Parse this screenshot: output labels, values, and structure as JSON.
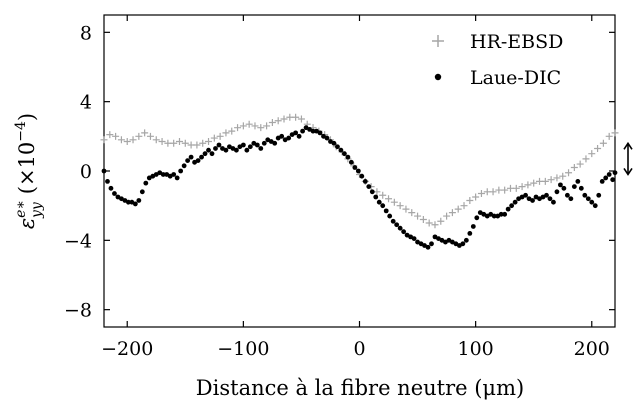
{
  "chart_data": {
    "type": "scatter",
    "xlabel": "Distance à la fibre neutre (μm)",
    "ylabel": {
      "symbol": "ε",
      "superscript": "e∗",
      "subscript": "yy",
      "unit": "(×10",
      "unit_exponent": "−4",
      "unit_close": ")"
    },
    "xlim": [
      -220,
      220
    ],
    "ylim": [
      -9,
      9
    ],
    "xticks": [
      {
        "value": -200,
        "label": "−200"
      },
      {
        "value": -100,
        "label": "−100"
      },
      {
        "value": 0,
        "label": "0"
      },
      {
        "value": 100,
        "label": "100"
      },
      {
        "value": 200,
        "label": "200"
      }
    ],
    "yticks": [
      {
        "value": 8,
        "label": "8"
      },
      {
        "value": 4,
        "label": "4"
      },
      {
        "value": 0,
        "label": "0"
      },
      {
        "value": -4,
        "label": "−4"
      },
      {
        "value": -8,
        "label": "−8"
      }
    ],
    "grid": false,
    "legend_position": "top-right",
    "annotation": {
      "type": "double-arrow",
      "y_from": -0.2,
      "y_to": 1.6
    },
    "series": [
      {
        "name": "HR-EBSD",
        "marker": "plus",
        "color": "#a6a6a6",
        "points": [
          [
            -220,
            1.8
          ],
          [
            -215,
            2.1
          ],
          [
            -210,
            2.0
          ],
          [
            -205,
            1.8
          ],
          [
            -200,
            1.7
          ],
          [
            -195,
            1.8
          ],
          [
            -190,
            2.0
          ],
          [
            -185,
            2.2
          ],
          [
            -180,
            2.0
          ],
          [
            -175,
            1.8
          ],
          [
            -170,
            1.7
          ],
          [
            -165,
            1.6
          ],
          [
            -160,
            1.6
          ],
          [
            -155,
            1.7
          ],
          [
            -150,
            1.6
          ],
          [
            -145,
            1.5
          ],
          [
            -140,
            1.5
          ],
          [
            -135,
            1.6
          ],
          [
            -130,
            1.7
          ],
          [
            -125,
            1.9
          ],
          [
            -120,
            2.0
          ],
          [
            -115,
            2.2
          ],
          [
            -110,
            2.3
          ],
          [
            -105,
            2.5
          ],
          [
            -100,
            2.6
          ],
          [
            -95,
            2.7
          ],
          [
            -90,
            2.6
          ],
          [
            -85,
            2.5
          ],
          [
            -80,
            2.6
          ],
          [
            -75,
            2.8
          ],
          [
            -70,
            2.9
          ],
          [
            -65,
            3.0
          ],
          [
            -60,
            3.1
          ],
          [
            -55,
            3.1
          ],
          [
            -50,
            3.0
          ],
          [
            -45,
            2.7
          ],
          [
            -40,
            2.5
          ],
          [
            -35,
            2.3
          ],
          [
            -30,
            2.1
          ],
          [
            -25,
            1.8
          ],
          [
            -20,
            1.4
          ],
          [
            -15,
            1.1
          ],
          [
            -10,
            0.7
          ],
          [
            -5,
            0.3
          ],
          [
            0,
            -0.2
          ],
          [
            5,
            -0.6
          ],
          [
            10,
            -0.9
          ],
          [
            15,
            -1.2
          ],
          [
            20,
            -1.4
          ],
          [
            25,
            -1.6
          ],
          [
            30,
            -1.8
          ],
          [
            35,
            -2.0
          ],
          [
            40,
            -2.2
          ],
          [
            45,
            -2.4
          ],
          [
            50,
            -2.6
          ],
          [
            55,
            -2.8
          ],
          [
            60,
            -3.0
          ],
          [
            65,
            -3.1
          ],
          [
            70,
            -2.9
          ],
          [
            75,
            -2.6
          ],
          [
            80,
            -2.4
          ],
          [
            85,
            -2.2
          ],
          [
            90,
            -2.0
          ],
          [
            95,
            -1.7
          ],
          [
            100,
            -1.5
          ],
          [
            105,
            -1.3
          ],
          [
            110,
            -1.2
          ],
          [
            115,
            -1.2
          ],
          [
            120,
            -1.1
          ],
          [
            125,
            -1.1
          ],
          [
            130,
            -1.0
          ],
          [
            135,
            -1.0
          ],
          [
            140,
            -0.9
          ],
          [
            145,
            -0.8
          ],
          [
            150,
            -0.7
          ],
          [
            155,
            -0.6
          ],
          [
            160,
            -0.6
          ],
          [
            165,
            -0.5
          ],
          [
            170,
            -0.4
          ],
          [
            175,
            -0.3
          ],
          [
            180,
            -0.1
          ],
          [
            185,
            0.2
          ],
          [
            190,
            0.4
          ],
          [
            195,
            0.7
          ],
          [
            200,
            1.0
          ],
          [
            205,
            1.3
          ],
          [
            210,
            1.6
          ],
          [
            215,
            2.0
          ],
          [
            220,
            2.2
          ]
        ]
      },
      {
        "name": "Laue-DIC",
        "marker": "dot",
        "color": "#000000",
        "points": [
          [
            -220,
            0.0
          ],
          [
            -217,
            -0.6
          ],
          [
            -214,
            -1.0
          ],
          [
            -211,
            -1.3
          ],
          [
            -208,
            -1.5
          ],
          [
            -205,
            -1.6
          ],
          [
            -202,
            -1.7
          ],
          [
            -199,
            -1.8
          ],
          [
            -196,
            -1.8
          ],
          [
            -193,
            -1.9
          ],
          [
            -190,
            -1.7
          ],
          [
            -187,
            -1.2
          ],
          [
            -184,
            -0.7
          ],
          [
            -181,
            -0.4
          ],
          [
            -178,
            -0.3
          ],
          [
            -175,
            -0.2
          ],
          [
            -172,
            -0.1
          ],
          [
            -169,
            -0.2
          ],
          [
            -166,
            -0.2
          ],
          [
            -163,
            -0.3
          ],
          [
            -160,
            -0.2
          ],
          [
            -157,
            -0.4
          ],
          [
            -154,
            0.0
          ],
          [
            -151,
            0.3
          ],
          [
            -148,
            0.6
          ],
          [
            -145,
            0.8
          ],
          [
            -142,
            0.5
          ],
          [
            -139,
            0.6
          ],
          [
            -136,
            0.8
          ],
          [
            -133,
            1.0
          ],
          [
            -130,
            1.2
          ],
          [
            -127,
            1.0
          ],
          [
            -124,
            1.3
          ],
          [
            -121,
            1.5
          ],
          [
            -118,
            1.3
          ],
          [
            -115,
            1.2
          ],
          [
            -112,
            1.4
          ],
          [
            -109,
            1.3
          ],
          [
            -106,
            1.2
          ],
          [
            -103,
            1.4
          ],
          [
            -100,
            1.5
          ],
          [
            -97,
            1.2
          ],
          [
            -94,
            1.4
          ],
          [
            -91,
            1.6
          ],
          [
            -88,
            1.5
          ],
          [
            -85,
            1.3
          ],
          [
            -82,
            1.6
          ],
          [
            -79,
            1.8
          ],
          [
            -76,
            1.7
          ],
          [
            -73,
            1.6
          ],
          [
            -70,
            1.9
          ],
          [
            -67,
            2.0
          ],
          [
            -64,
            1.8
          ],
          [
            -61,
            1.9
          ],
          [
            -58,
            2.1
          ],
          [
            -55,
            2.2
          ],
          [
            -52,
            2.0
          ],
          [
            -49,
            2.3
          ],
          [
            -46,
            2.5
          ],
          [
            -43,
            2.4
          ],
          [
            -40,
            2.3
          ],
          [
            -37,
            2.3
          ],
          [
            -34,
            2.2
          ],
          [
            -31,
            2.0
          ],
          [
            -28,
            1.9
          ],
          [
            -25,
            1.7
          ],
          [
            -22,
            1.6
          ],
          [
            -19,
            1.4
          ],
          [
            -16,
            1.2
          ],
          [
            -13,
            1.0
          ],
          [
            -10,
            0.8
          ],
          [
            -7,
            0.5
          ],
          [
            -4,
            0.2
          ],
          [
            -1,
            0.0
          ],
          [
            2,
            -0.3
          ],
          [
            5,
            -0.6
          ],
          [
            8,
            -0.9
          ],
          [
            11,
            -1.2
          ],
          [
            14,
            -1.5
          ],
          [
            17,
            -1.8
          ],
          [
            20,
            -2.0
          ],
          [
            23,
            -2.3
          ],
          [
            26,
            -2.6
          ],
          [
            29,
            -2.9
          ],
          [
            32,
            -3.1
          ],
          [
            35,
            -3.3
          ],
          [
            38,
            -3.5
          ],
          [
            41,
            -3.7
          ],
          [
            44,
            -3.8
          ],
          [
            47,
            -3.9
          ],
          [
            50,
            -4.1
          ],
          [
            53,
            -4.2
          ],
          [
            56,
            -4.3
          ],
          [
            59,
            -4.4
          ],
          [
            62,
            -4.2
          ],
          [
            65,
            -3.8
          ],
          [
            68,
            -3.9
          ],
          [
            71,
            -4.0
          ],
          [
            74,
            -4.1
          ],
          [
            77,
            -4.0
          ],
          [
            80,
            -4.1
          ],
          [
            83,
            -4.2
          ],
          [
            86,
            -4.3
          ],
          [
            89,
            -4.2
          ],
          [
            92,
            -4.0
          ],
          [
            95,
            -3.6
          ],
          [
            98,
            -3.2
          ],
          [
            101,
            -2.7
          ],
          [
            104,
            -2.4
          ],
          [
            107,
            -2.5
          ],
          [
            110,
            -2.6
          ],
          [
            113,
            -2.5
          ],
          [
            116,
            -2.6
          ],
          [
            119,
            -2.6
          ],
          [
            122,
            -2.5
          ],
          [
            125,
            -2.5
          ],
          [
            128,
            -2.2
          ],
          [
            131,
            -2.0
          ],
          [
            134,
            -1.8
          ],
          [
            137,
            -1.6
          ],
          [
            140,
            -1.5
          ],
          [
            143,
            -1.4
          ],
          [
            146,
            -1.6
          ],
          [
            149,
            -1.7
          ],
          [
            152,
            -1.5
          ],
          [
            155,
            -1.6
          ],
          [
            158,
            -1.5
          ],
          [
            161,
            -1.4
          ],
          [
            164,
            -1.6
          ],
          [
            167,
            -1.8
          ],
          [
            170,
            -1.2
          ],
          [
            173,
            -0.8
          ],
          [
            176,
            -1.0
          ],
          [
            179,
            -1.4
          ],
          [
            182,
            -1.6
          ],
          [
            185,
            -0.9
          ],
          [
            188,
            -0.6
          ],
          [
            191,
            -1.0
          ],
          [
            194,
            -1.4
          ],
          [
            197,
            -1.6
          ],
          [
            200,
            -1.8
          ],
          [
            203,
            -2.0
          ],
          [
            206,
            -1.4
          ],
          [
            209,
            -0.6
          ],
          [
            212,
            -0.4
          ],
          [
            215,
            -0.2
          ],
          [
            218,
            -0.5
          ],
          [
            220,
            -0.1
          ]
        ]
      }
    ]
  }
}
